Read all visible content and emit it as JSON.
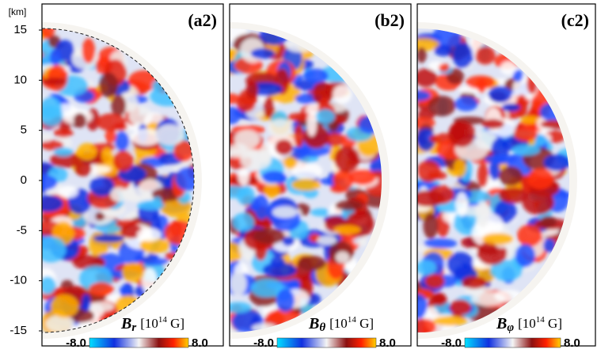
{
  "axis": {
    "unit": "[km]",
    "ticks": [
      "15",
      "10",
      "5",
      "0",
      "-5",
      "-10",
      "-15"
    ]
  },
  "panels": [
    {
      "label": "(a2)",
      "symbol": "B",
      "subscript": "r",
      "unit_open": "[10",
      "unit_power": "14",
      "unit_close": " G]",
      "colorbar_min": "-8.0",
      "colorbar_max": "8.0"
    },
    {
      "label": "(b2)",
      "symbol": "B",
      "subscript": "θ",
      "unit_open": "[10",
      "unit_power": "14",
      "unit_close": " G]",
      "colorbar_min": "-8.0",
      "colorbar_max": "8.0"
    },
    {
      "label": "(c2)",
      "symbol": "B",
      "subscript": "φ",
      "unit_open": "[10",
      "unit_power": "14",
      "unit_close": " G]",
      "colorbar_min": "-8.0",
      "colorbar_max": "8.0"
    }
  ]
}
